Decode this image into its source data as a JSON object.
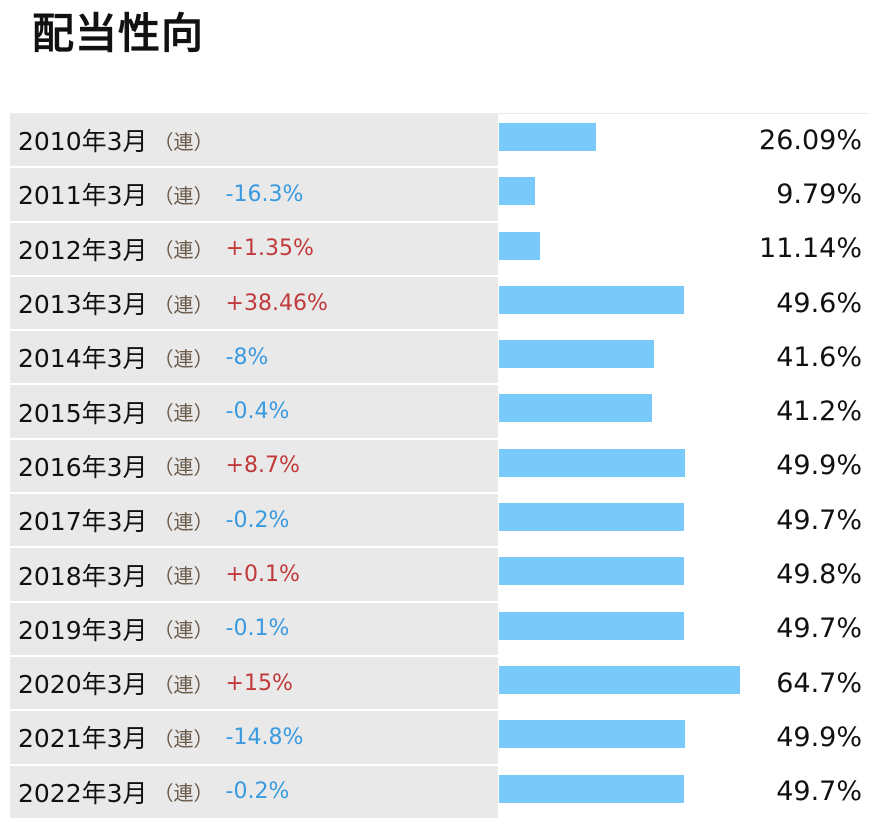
{
  "title": "配当性向",
  "consolidated_label": "（連）",
  "colors": {
    "bar": "#7ac9fb",
    "negative_change": "#3a9ae0",
    "positive_change": "#c0393b",
    "label_bg": "#e9e9e9"
  },
  "chart_data": {
    "type": "bar",
    "orientation": "horizontal",
    "title": "配当性向",
    "categories": [
      "2010年3月",
      "2011年3月",
      "2012年3月",
      "2013年3月",
      "2014年3月",
      "2015年3月",
      "2016年3月",
      "2017年3月",
      "2018年3月",
      "2019年3月",
      "2020年3月",
      "2021年3月",
      "2022年3月"
    ],
    "values": [
      26.09,
      9.79,
      11.14,
      49.6,
      41.6,
      41.2,
      49.9,
      49.7,
      49.8,
      49.7,
      64.7,
      49.9,
      49.7
    ],
    "value_labels": [
      "26.09%",
      "9.79%",
      "11.14%",
      "49.6%",
      "41.6%",
      "41.2%",
      "49.9%",
      "49.7%",
      "49.8%",
      "49.7%",
      "64.7%",
      "49.9%",
      "49.7%"
    ],
    "changes": [
      "",
      "-16.3%",
      "+1.35%",
      "+38.46%",
      "-8%",
      "-0.4%",
      "+8.7%",
      "-0.2%",
      "+0.1%",
      "-0.1%",
      "+15%",
      "-14.8%",
      "-0.2%"
    ],
    "xlim": [
      0,
      100
    ]
  }
}
